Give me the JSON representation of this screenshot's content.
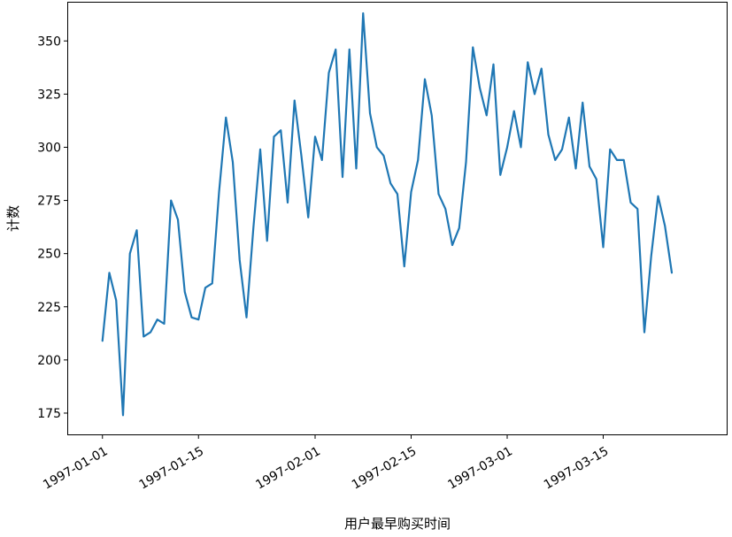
{
  "chart_data": {
    "type": "line",
    "xlabel": "用户最早购买时间",
    "ylabel": "计数",
    "x_start": "1997-01-01",
    "x_end": "1997-03-28",
    "xlim": [
      "1996-12-27",
      "1997-04-02"
    ],
    "ylim": [
      165,
      368
    ],
    "x_ticks": [
      "1997-01-01",
      "1997-01-15",
      "1997-02-01",
      "1997-02-15",
      "1997-03-01",
      "1997-03-15"
    ],
    "x_tick_labels": [
      "1997-01-01",
      "1997-01-15",
      "1997-02-01",
      "1997-02-15",
      "1997-03-01",
      "1997-03-15"
    ],
    "y_ticks": [
      175,
      200,
      225,
      250,
      275,
      300,
      325,
      350
    ],
    "y_tick_labels": [
      "175",
      "200",
      "225",
      "250",
      "275",
      "300",
      "325",
      "350"
    ],
    "grid": false,
    "series": [
      {
        "color": "#1f77b4",
        "values": [
          209,
          241,
          228,
          174,
          250,
          261,
          211,
          213,
          219,
          217,
          275,
          266,
          232,
          220,
          219,
          234,
          236,
          279,
          314,
          293,
          247,
          220,
          262,
          299,
          256,
          305,
          308,
          274,
          322,
          296,
          267,
          305,
          294,
          335,
          346,
          286,
          346,
          290,
          363,
          316,
          300,
          296,
          283,
          278,
          244,
          279,
          294,
          332,
          315,
          278,
          271,
          254,
          262,
          293,
          347,
          328,
          315,
          339,
          287,
          300,
          317,
          300,
          340,
          325,
          337,
          306,
          294,
          299,
          314,
          290,
          321,
          291,
          285,
          253,
          299,
          294,
          294,
          274,
          271,
          213,
          249,
          277,
          263,
          241
        ]
      }
    ]
  }
}
